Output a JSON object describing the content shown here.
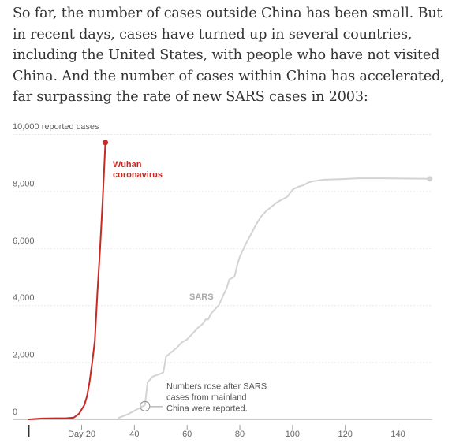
{
  "intro": {
    "text": "So far, the number of cases outside China has been small. But in recent days, cases have turned up in several countries, including the United States, with people who have not visited China. And the number of cases within China has accelerated, far surpassing the rate of new SARS cases in 2003:"
  },
  "colors": {
    "wuhan": "#c82922",
    "sars": "#d3d3d3",
    "grid": "#e6e6e6",
    "axis": "#333333"
  },
  "chart_data": {
    "type": "line",
    "title": "",
    "xlabel": "",
    "ylabel": "",
    "xlim": [
      -0.5,
      153
    ],
    "ylim": [
      0,
      10000
    ],
    "grid": true,
    "y_ticks": [
      {
        "value": 0,
        "label": "0"
      },
      {
        "value": 2000,
        "label": "2,000"
      },
      {
        "value": 4000,
        "label": "4,000"
      },
      {
        "value": 6000,
        "label": "6,000"
      },
      {
        "value": 8000,
        "label": "8,000"
      },
      {
        "value": 10000,
        "label": "10,000 reported cases"
      }
    ],
    "x_ticks": [
      {
        "value": 0,
        "label": ""
      },
      {
        "value": 20,
        "label": "Day 20"
      },
      {
        "value": 40,
        "label": "40"
      },
      {
        "value": 60,
        "label": "60"
      },
      {
        "value": 80,
        "label": "80"
      },
      {
        "value": 100,
        "label": "100"
      },
      {
        "value": 120,
        "label": "120"
      },
      {
        "value": 140,
        "label": "140"
      }
    ],
    "series": [
      {
        "name": "Wuhan coronavirus",
        "label_lines": [
          "Wuhan",
          "coronavirus"
        ],
        "points": [
          [
            0,
            0
          ],
          [
            5,
            30
          ],
          [
            10,
            40
          ],
          [
            14,
            40
          ],
          [
            17,
            60
          ],
          [
            19,
            200
          ],
          [
            21,
            500
          ],
          [
            22,
            800
          ],
          [
            23,
            1300
          ],
          [
            24,
            2000
          ],
          [
            25,
            2750
          ],
          [
            26,
            4500
          ],
          [
            27,
            6000
          ],
          [
            28,
            7700
          ],
          [
            29,
            9700
          ]
        ]
      },
      {
        "name": "SARS",
        "label_lines": [
          "SARS"
        ],
        "points": [
          [
            34,
            50
          ],
          [
            38,
            200
          ],
          [
            42,
            400
          ],
          [
            44,
            500
          ],
          [
            45,
            1300
          ],
          [
            47,
            1500
          ],
          [
            50,
            1600
          ],
          [
            51,
            1650
          ],
          [
            52,
            2200
          ],
          [
            54,
            2350
          ],
          [
            56,
            2500
          ],
          [
            58,
            2700
          ],
          [
            60,
            2800
          ],
          [
            62,
            3000
          ],
          [
            64,
            3200
          ],
          [
            66,
            3350
          ],
          [
            67,
            3500
          ],
          [
            68,
            3500
          ],
          [
            69,
            3700
          ],
          [
            70,
            3800
          ],
          [
            72,
            4000
          ],
          [
            74,
            4400
          ],
          [
            75,
            4600
          ],
          [
            76,
            4900
          ],
          [
            78,
            5000
          ],
          [
            79,
            5400
          ],
          [
            80,
            5700
          ],
          [
            82,
            6100
          ],
          [
            84,
            6450
          ],
          [
            86,
            6800
          ],
          [
            88,
            7100
          ],
          [
            90,
            7300
          ],
          [
            92,
            7450
          ],
          [
            94,
            7600
          ],
          [
            96,
            7700
          ],
          [
            98,
            7800
          ],
          [
            100,
            8050
          ],
          [
            102,
            8150
          ],
          [
            104,
            8200
          ],
          [
            106,
            8300
          ],
          [
            108,
            8350
          ],
          [
            112,
            8400
          ],
          [
            118,
            8420
          ],
          [
            125,
            8450
          ],
          [
            135,
            8450
          ],
          [
            145,
            8440
          ],
          [
            152,
            8430
          ]
        ]
      }
    ],
    "annotations": [
      {
        "series": "SARS",
        "x": 44,
        "y": 460,
        "lines": [
          "Numbers rose after SARS",
          "cases from mainland",
          "China were reported."
        ]
      }
    ]
  }
}
